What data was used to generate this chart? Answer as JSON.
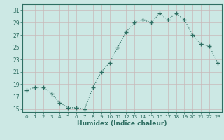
{
  "x": [
    0,
    1,
    2,
    3,
    4,
    5,
    6,
    7,
    8,
    9,
    10,
    11,
    12,
    13,
    14,
    15,
    16,
    17,
    18,
    19,
    20,
    21,
    22,
    23
  ],
  "y": [
    18,
    18.5,
    18.5,
    17.5,
    16,
    15.2,
    15.2,
    15,
    18.5,
    21,
    22.5,
    25,
    27.5,
    29,
    29.5,
    29,
    30.5,
    29.5,
    30.5,
    29.5,
    27,
    25.5,
    25.2,
    22.5
  ],
  "line_color": "#2e6e62",
  "marker": "+",
  "marker_size": 4,
  "bg_color": "#cce8e4",
  "grid_color": "#b8d4d0",
  "tick_color": "#2e6e62",
  "xlabel": "Humidex (Indice chaleur)",
  "xlim": [
    -0.5,
    23.5
  ],
  "ylim": [
    14.5,
    32
  ],
  "yticks": [
    15,
    17,
    19,
    21,
    23,
    25,
    27,
    29,
    31
  ],
  "xticks": [
    0,
    1,
    2,
    3,
    4,
    5,
    6,
    7,
    8,
    9,
    10,
    11,
    12,
    13,
    14,
    15,
    16,
    17,
    18,
    19,
    20,
    21,
    22,
    23
  ]
}
